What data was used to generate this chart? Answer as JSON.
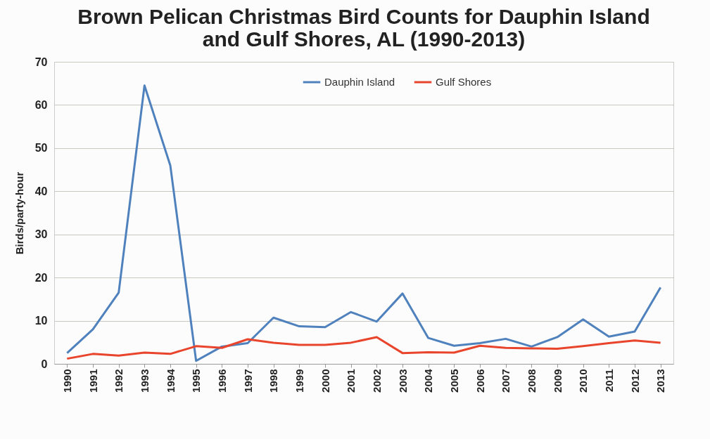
{
  "chart_data": {
    "type": "line",
    "title": "Brown Pelican Christmas Bird Counts for Dauphin Island and Gulf Shores, AL (1990-2013)",
    "ylabel": "Birds/party-hour",
    "categories": [
      "1990",
      "1991",
      "1992",
      "1993",
      "1994",
      "1995",
      "1996",
      "1997",
      "1998",
      "1999",
      "2000",
      "2001",
      "2002",
      "2003",
      "2004",
      "2005",
      "2006",
      "2007",
      "2008",
      "2009",
      "2010",
      "2011",
      "2012",
      "2013"
    ],
    "series": [
      {
        "name": "Dauphin Island",
        "color": "#4f81bd",
        "values": [
          2.5,
          8,
          16.5,
          64.5,
          46,
          0.7,
          4,
          4.8,
          10.7,
          8.7,
          8.5,
          12,
          9.8,
          16.3,
          6,
          4.2,
          4.8,
          5.8,
          4,
          6.2,
          10.3,
          6.3,
          7.5,
          17.7
        ]
      },
      {
        "name": "Gulf Shores",
        "color": "#e8452c",
        "values": [
          1.2,
          2.3,
          1.9,
          2.6,
          2.3,
          4.1,
          3.7,
          5.7,
          4.9,
          4.4,
          4.4,
          4.9,
          6.2,
          2.5,
          2.7,
          2.6,
          4.2,
          3.7,
          3.6,
          3.5,
          4.1,
          4.8,
          5.4,
          4.9
        ]
      }
    ],
    "ylim": [
      0,
      70
    ],
    "yticks": [
      0,
      10,
      20,
      30,
      40,
      50,
      60,
      70
    ],
    "grid": "y",
    "legend": "top"
  }
}
